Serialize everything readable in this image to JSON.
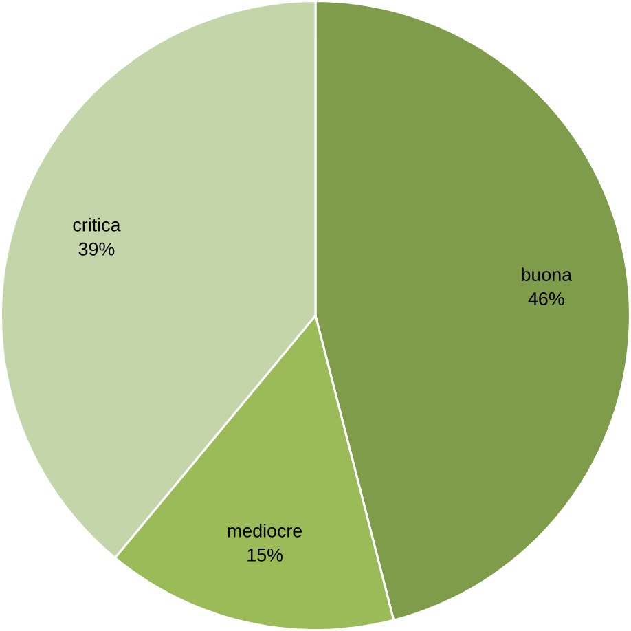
{
  "chart_data": {
    "type": "pie",
    "categories": [
      "buona",
      "mediocre",
      "critica"
    ],
    "values": [
      46,
      15,
      39
    ],
    "value_labels": [
      "46%",
      "15%",
      "39%"
    ],
    "colors": [
      "#7f9c4a",
      "#9bbb59",
      "#c4d6a9"
    ]
  }
}
